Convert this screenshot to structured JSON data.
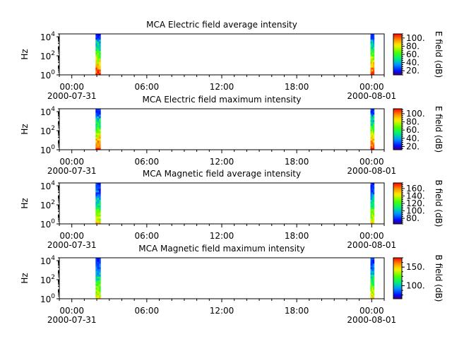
{
  "chart_data": [
    {
      "type": "heatmap",
      "title": "MCA  Electric field average intensity",
      "ylabel": "Hz",
      "y_scale": "log",
      "ylim": [
        1,
        20000
      ],
      "y_ticks": [
        {
          "value": 1,
          "base": "10",
          "exp": "0"
        },
        {
          "value": 100,
          "base": "10",
          "exp": "2"
        },
        {
          "value": 10000,
          "base": "10",
          "exp": "4"
        }
      ],
      "x_ticks": [
        "00:00",
        "06:00",
        "12:00",
        "18:00",
        "00:00"
      ],
      "x_dates": [
        "2000-07-31",
        "2000-08-01"
      ],
      "xlim_hours": [
        -1,
        25
      ],
      "data_bands_hours": [
        [
          1.9,
          2.3
        ],
        [
          23.9,
          24.2
        ]
      ],
      "colorbar": {
        "label": "E field (dB)",
        "range": [
          10,
          110
        ],
        "ticks": [
          "20.",
          "40.",
          "60.",
          "80.",
          "100."
        ]
      }
    },
    {
      "type": "heatmap",
      "title": "MCA  Electric field maximum intensity",
      "ylabel": "Hz",
      "y_scale": "log",
      "ylim": [
        1,
        20000
      ],
      "y_ticks": [
        {
          "value": 1,
          "base": "10",
          "exp": "0"
        },
        {
          "value": 100,
          "base": "10",
          "exp": "2"
        },
        {
          "value": 10000,
          "base": "10",
          "exp": "4"
        }
      ],
      "x_ticks": [
        "00:00",
        "06:00",
        "12:00",
        "18:00",
        "00:00"
      ],
      "x_dates": [
        "2000-07-31",
        "2000-08-01"
      ],
      "xlim_hours": [
        -1,
        25
      ],
      "data_bands_hours": [
        [
          1.9,
          2.3
        ],
        [
          23.9,
          24.2
        ]
      ],
      "colorbar": {
        "label": "E field (dB)",
        "range": [
          12,
          112
        ],
        "ticks": [
          "20.",
          "40.",
          "60.",
          "80.",
          "100."
        ]
      }
    },
    {
      "type": "heatmap",
      "title": "MCA  Magnetic field average intensity",
      "ylabel": "Hz",
      "y_scale": "log",
      "ylim": [
        1,
        20000
      ],
      "y_ticks": [
        {
          "value": 1,
          "base": "10",
          "exp": "0"
        },
        {
          "value": 100,
          "base": "10",
          "exp": "2"
        },
        {
          "value": 10000,
          "base": "10",
          "exp": "4"
        }
      ],
      "x_ticks": [
        "00:00",
        "06:00",
        "12:00",
        "18:00",
        "00:00"
      ],
      "x_dates": [
        "2000-07-31",
        "2000-08-01"
      ],
      "xlim_hours": [
        -1,
        25
      ],
      "data_bands_hours": [
        [
          1.9,
          2.3
        ],
        [
          23.9,
          24.2
        ]
      ],
      "colorbar": {
        "label": "B field (dB)",
        "range": [
          65,
          175
        ],
        "ticks": [
          "80.",
          "100.",
          "120.",
          "140.",
          "160."
        ]
      }
    },
    {
      "type": "heatmap",
      "title": "MCA  Magnetic field maximum intensity",
      "ylabel": "Hz",
      "y_scale": "log",
      "ylim": [
        1,
        20000
      ],
      "y_ticks": [
        {
          "value": 1,
          "base": "10",
          "exp": "0"
        },
        {
          "value": 100,
          "base": "10",
          "exp": "2"
        },
        {
          "value": 10000,
          "base": "10",
          "exp": "4"
        }
      ],
      "x_ticks": [
        "00:00",
        "06:00",
        "12:00",
        "18:00",
        "00:00"
      ],
      "x_dates": [
        "2000-07-31",
        "2000-08-01"
      ],
      "xlim_hours": [
        -1,
        25
      ],
      "data_bands_hours": [
        [
          1.9,
          2.3
        ],
        [
          23.9,
          24.2
        ]
      ],
      "colorbar": {
        "label": "B field (dB)",
        "range": [
          65,
          175
        ],
        "ticks": [
          "100.",
          "150."
        ]
      }
    }
  ]
}
